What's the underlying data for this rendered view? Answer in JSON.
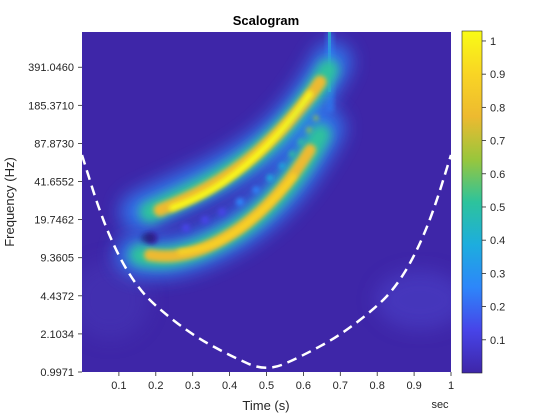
{
  "chart_data": {
    "type": "heatmap",
    "title": "Scalogram",
    "xlabel": "Time (s)",
    "ylabel": "Frequency (Hz)",
    "x_unit_label": "sec",
    "xlim": [
      0,
      1
    ],
    "y_scale": "log",
    "ylim": [
      0.9971,
      780
    ],
    "x_ticks": [
      "0.1",
      "0.2",
      "0.3",
      "0.4",
      "0.5",
      "0.6",
      "0.7",
      "0.8",
      "0.9",
      "1"
    ],
    "y_ticks": [
      "0.9971",
      "2.1034",
      "4.4372",
      "9.3605",
      "19.7462",
      "41.6552",
      "87.8730",
      "185.3710",
      "391.0460"
    ],
    "colorbar": {
      "ticks": [
        "0.1",
        "0.2",
        "0.3",
        "0.4",
        "0.5",
        "0.6",
        "0.7",
        "0.8",
        "0.9",
        "1"
      ],
      "range": [
        0,
        1.03
      ]
    },
    "colormap": [
      "#3e26a8",
      "#4744e8",
      "#2d86fa",
      "#1dadde",
      "#2dc39c",
      "#99c63c",
      "#edba30",
      "#f9d524",
      "#f9fb15"
    ],
    "cone_of_influence": {
      "style": "white dashed",
      "points": [
        [
          0.0,
          70
        ],
        [
          0.05,
          22
        ],
        [
          0.1,
          9.5
        ],
        [
          0.15,
          5.3
        ],
        [
          0.2,
          3.6
        ],
        [
          0.3,
          2.05
        ],
        [
          0.4,
          1.38
        ],
        [
          0.5,
          1.0
        ],
        [
          0.6,
          1.38
        ],
        [
          0.7,
          2.05
        ],
        [
          0.8,
          3.6
        ],
        [
          0.85,
          5.3
        ],
        [
          0.9,
          9.5
        ],
        [
          0.95,
          22
        ],
        [
          1.0,
          70
        ]
      ]
    },
    "features": [
      {
        "name": "upper chirp ridge",
        "t": [
          0.18,
          0.3,
          0.45,
          0.6,
          0.67
        ],
        "f": [
          28,
          40,
          70,
          170,
          300
        ],
        "peak": 1.0
      },
      {
        "name": "lower chirp ridge",
        "t": [
          0.2,
          0.3,
          0.45,
          0.6,
          0.67
        ],
        "f": [
          14,
          17,
          30,
          75,
          150
        ],
        "peak": 0.9
      }
    ]
  }
}
